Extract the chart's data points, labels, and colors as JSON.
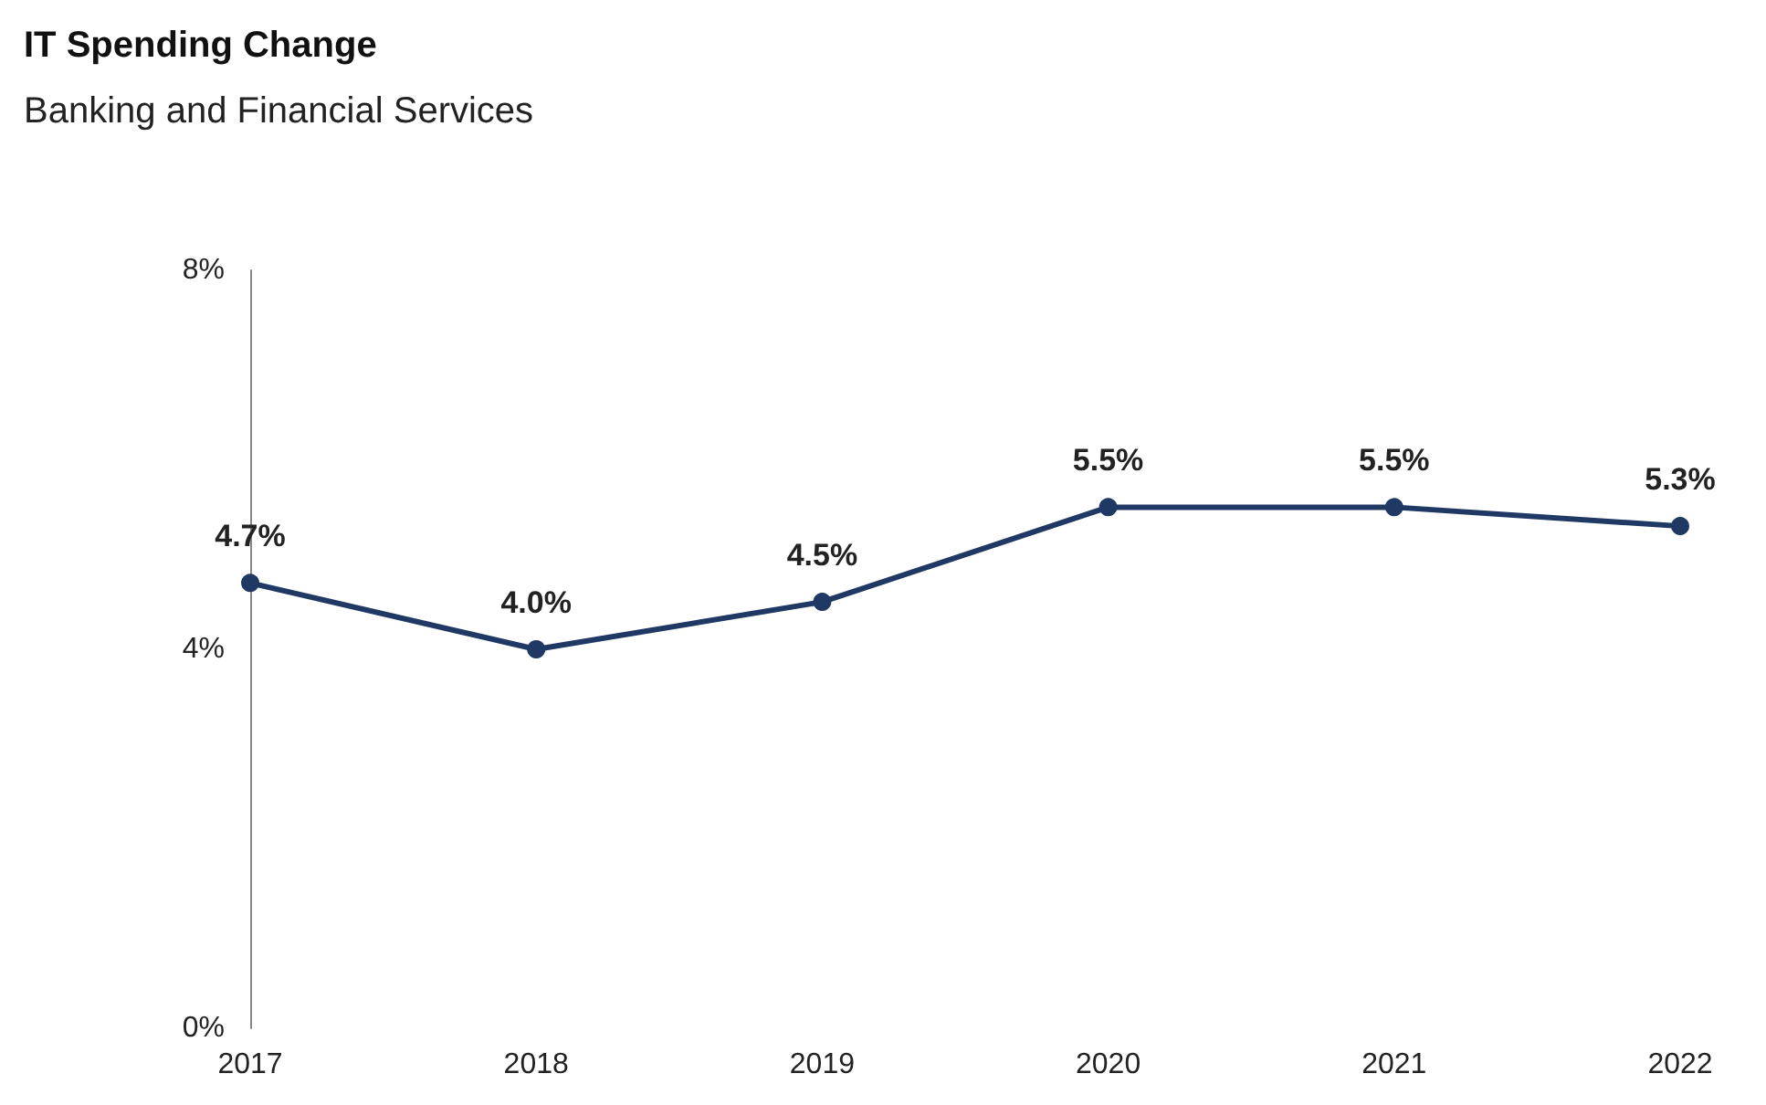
{
  "chart_data": {
    "type": "line",
    "title": "IT Spending Change",
    "subtitle": "Banking and Financial Services",
    "categories": [
      "2017",
      "2018",
      "2019",
      "2020",
      "2021",
      "2022"
    ],
    "series": [
      {
        "color": "#1f3864",
        "values": [
          4.7,
          4.0,
          4.5,
          5.5,
          5.5,
          5.3
        ],
        "value_labels": [
          "4.7%",
          "4.0%",
          "4.5%",
          "5.5%",
          "5.5%",
          "5.3%"
        ]
      }
    ],
    "ylim": [
      0,
      8
    ],
    "yticks": [
      {
        "value": 0,
        "label": "0%"
      },
      {
        "value": 4,
        "label": "4%"
      },
      {
        "value": 8,
        "label": "8%"
      }
    ],
    "grid": false,
    "marker": "circle",
    "line_style": "solid"
  }
}
